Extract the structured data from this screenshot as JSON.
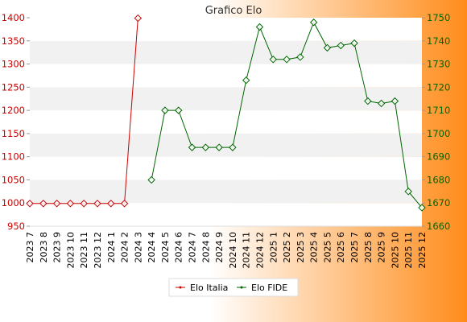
{
  "chart_data": {
    "type": "line",
    "title": "Grafico Elo",
    "categories": [
      "2023 7",
      "2023 8",
      "2023 9",
      "2023 10",
      "2023 11",
      "2023 12",
      "2024 1",
      "2024 2",
      "2024 3",
      "2024 4",
      "2024 5",
      "2024 6",
      "2024 7",
      "2024 8",
      "2024 9",
      "2024 10",
      "2024 11",
      "2024 12",
      "2025 1",
      "2025 2",
      "2025 3",
      "2025 4",
      "2025 5",
      "2025 6",
      "2025 7",
      "2025 8",
      "2025 9",
      "2025 10",
      "2025 11",
      "2025 12"
    ],
    "y_left": {
      "range": [
        950,
        1400
      ],
      "ticks": [
        950,
        1000,
        1050,
        1100,
        1150,
        1200,
        1250,
        1300,
        1350,
        1400
      ]
    },
    "y_right": {
      "range": [
        1660,
        1750
      ],
      "ticks": [
        1660,
        1670,
        1680,
        1690,
        1700,
        1710,
        1720,
        1730,
        1740,
        1750
      ]
    },
    "series": [
      {
        "name": "Elo Italia",
        "axis": "left",
        "color": "#cc0000",
        "values": [
          999,
          999,
          999,
          999,
          999,
          999,
          999,
          999,
          1399,
          null,
          null,
          null,
          null,
          null,
          null,
          null,
          null,
          null,
          null,
          null,
          null,
          null,
          null,
          null,
          null,
          null,
          null,
          null,
          null,
          null
        ]
      },
      {
        "name": "Elo FIDE",
        "axis": "right",
        "color": "#006600",
        "values": [
          null,
          null,
          null,
          null,
          null,
          null,
          null,
          null,
          null,
          1680,
          1710,
          1710,
          1694,
          1694,
          1694,
          1694,
          1723,
          1746,
          1732,
          1732,
          1733,
          1748,
          1737,
          1738,
          1739,
          1714,
          1713,
          1714,
          1675,
          1668
        ]
      }
    ],
    "grid": true,
    "legend_position": "bottom"
  }
}
